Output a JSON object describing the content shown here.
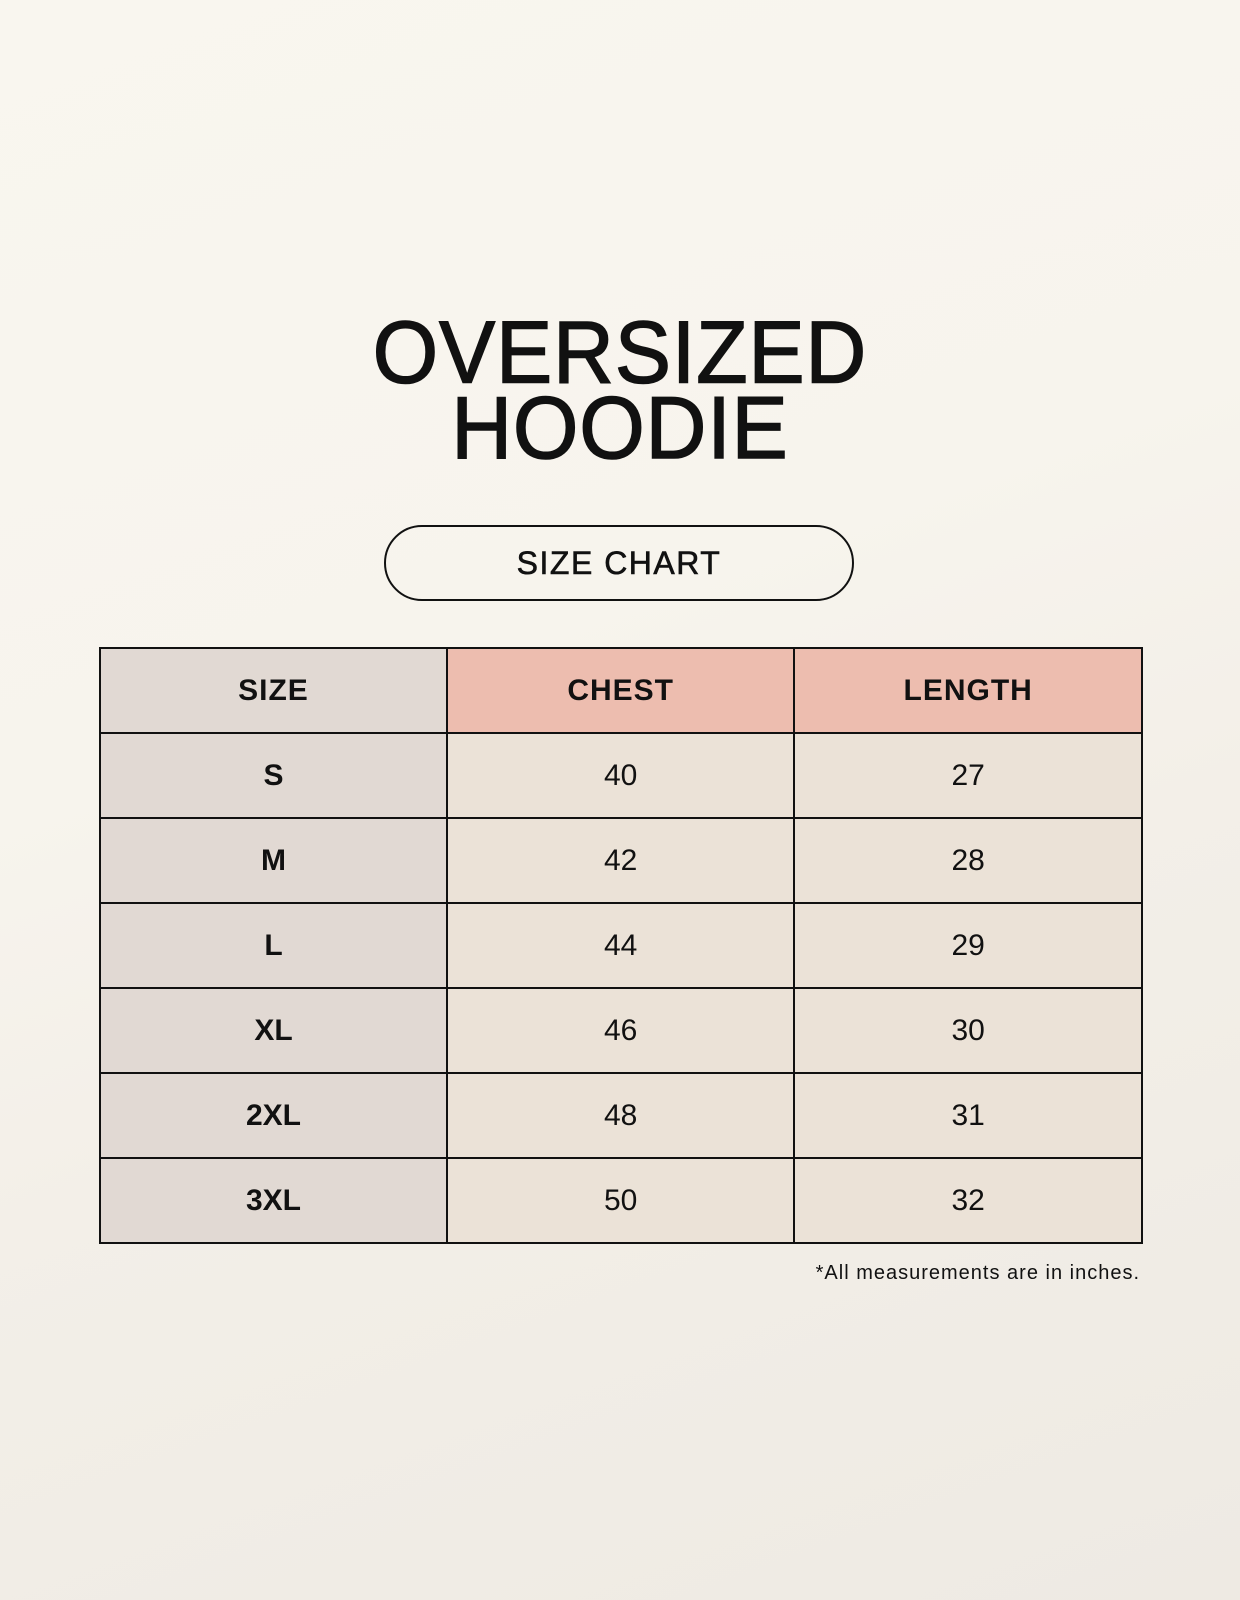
{
  "title": {
    "line1": "OVERSIZED",
    "line2": "HOODIE"
  },
  "badge": "SIZE CHART",
  "table": {
    "headers": [
      "SIZE",
      "CHEST",
      "LENGTH"
    ],
    "rows": [
      [
        "S",
        "40",
        "27"
      ],
      [
        "M",
        "42",
        "28"
      ],
      [
        "L",
        "44",
        "29"
      ],
      [
        "XL",
        "46",
        "30"
      ],
      [
        "2XL",
        "48",
        "31"
      ],
      [
        "3XL",
        "50",
        "32"
      ]
    ]
  },
  "footnote": "*All measurements are in inches.",
  "colors": {
    "size_column": "#e1d9d3",
    "header_accent": "#edbdaf",
    "cell": "#ebe2d7"
  }
}
